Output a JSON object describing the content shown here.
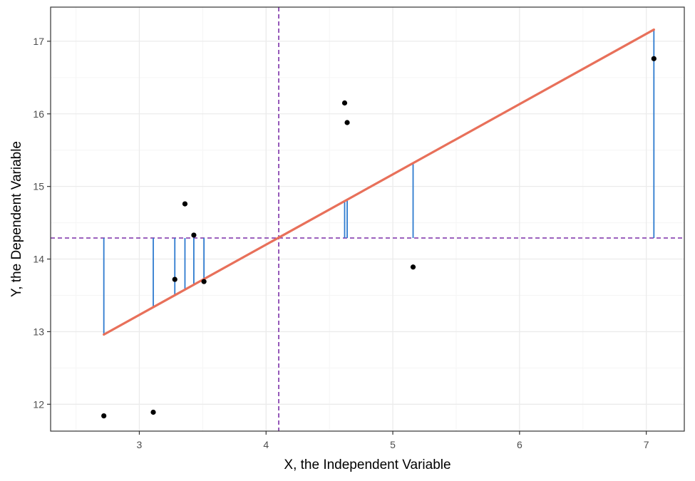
{
  "chart_data": {
    "type": "scatter",
    "xlabel": "X, the Independent Variable",
    "ylabel": "Y, the Dependent Variable",
    "xlim": [
      2.3,
      7.3
    ],
    "ylim": [
      11.63,
      17.47
    ],
    "x_major_ticks": [
      3,
      4,
      5,
      6,
      7
    ],
    "x_minor_ticks": [
      2.5,
      3.5,
      4.5,
      5.5,
      6.5
    ],
    "y_major_ticks": [
      12,
      13,
      14,
      15,
      16,
      17
    ],
    "y_minor_ticks": [
      12.5,
      13.5,
      14.5,
      15.5,
      16.5
    ],
    "x_tick_labels": [
      "3",
      "4",
      "5",
      "6",
      "7"
    ],
    "y_tick_labels": [
      "12",
      "13",
      "14",
      "15",
      "16",
      "17"
    ],
    "grid": true,
    "points": [
      {
        "x": 2.72,
        "y": 11.84
      },
      {
        "x": 3.11,
        "y": 11.89
      },
      {
        "x": 3.28,
        "y": 13.72
      },
      {
        "x": 3.36,
        "y": 14.76
      },
      {
        "x": 3.43,
        "y": 14.33
      },
      {
        "x": 3.51,
        "y": 13.69
      },
      {
        "x": 4.62,
        "y": 16.15
      },
      {
        "x": 4.64,
        "y": 15.88
      },
      {
        "x": 5.16,
        "y": 13.89
      },
      {
        "x": 7.06,
        "y": 16.76
      }
    ],
    "regression_line": {
      "x_start": 2.72,
      "y_start": 12.96,
      "x_end": 7.06,
      "y_end": 17.16
    },
    "mean_x": 4.1,
    "mean_y": 14.29,
    "colors": {
      "points": "#000000",
      "regression": "#E8705A",
      "segments": "#2E7BCF",
      "mean_lines": "#7B2FA8",
      "grid_major": "#EBEBEB",
      "grid_minor": "#F5F5F5",
      "panel_border": "#333333"
    }
  }
}
